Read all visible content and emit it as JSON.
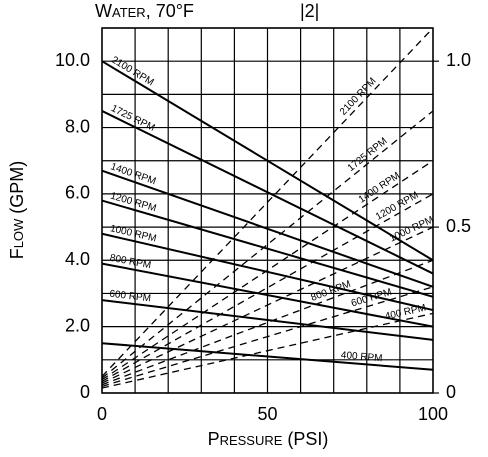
{
  "chart_data": {
    "type": "line",
    "title": "Water, 70°F",
    "annotation": "|2|",
    "xlabel": "Pressure (PSI)",
    "ylabel": "Flow (GPM)",
    "x": [
      0,
      100
    ],
    "xlim": [
      0,
      100
    ],
    "ylim": [
      0,
      11
    ],
    "y2lim": [
      0,
      1.1
    ],
    "grid": true,
    "xticks": [
      0,
      {
        "value": 10,
        "label": null
      },
      {
        "value": 20,
        "label": null
      },
      {
        "value": 30,
        "label": null
      },
      {
        "value": 40,
        "label": null
      },
      50,
      {
        "value": 60,
        "label": null
      },
      {
        "value": 70,
        "label": null
      },
      {
        "value": 80,
        "label": null
      },
      {
        "value": 90,
        "label": null
      },
      100
    ],
    "yticks": [
      0,
      {
        "value": 1,
        "label": null
      },
      {
        "value": 2,
        "label": "2.0"
      },
      {
        "value": 3,
        "label": null
      },
      {
        "value": 4,
        "label": "4.0"
      },
      {
        "value": 5,
        "label": null
      },
      {
        "value": 6,
        "label": "6.0"
      },
      {
        "value": 7,
        "label": null
      },
      {
        "value": 8,
        "label": "8.0"
      },
      {
        "value": 9,
        "label": null
      },
      {
        "value": 10,
        "label": "10.0"
      },
      {
        "value": 11,
        "label": null
      }
    ],
    "y2ticks": [
      0,
      0.5,
      {
        "value": 1,
        "label": "1.0"
      }
    ],
    "series": [
      {
        "name": "2100 RPM",
        "color": "#000000",
        "style": "solid",
        "values": [
          10.0,
          4.0
        ]
      },
      {
        "name": "1725 RPM",
        "color": "#000000",
        "style": "solid",
        "values": [
          8.5,
          3.6
        ]
      },
      {
        "name": "1400 RPM",
        "color": "#000000",
        "style": "solid",
        "values": [
          6.7,
          3.2
        ]
      },
      {
        "name": "1200 RPM",
        "color": "#000000",
        "style": "solid",
        "values": [
          5.8,
          2.9
        ]
      },
      {
        "name": "1000 RPM",
        "color": "#000000",
        "style": "solid",
        "values": [
          4.8,
          2.5
        ]
      },
      {
        "name": "800 RPM",
        "color": "#000000",
        "style": "solid",
        "values": [
          3.9,
          2.0
        ]
      },
      {
        "name": "600 RPM",
        "color": "#000000",
        "style": "solid",
        "values": [
          2.8,
          1.6
        ]
      },
      {
        "name": "400 RPM",
        "color": "#000000",
        "style": "solid",
        "values": [
          1.5,
          0.7
        ]
      },
      {
        "name": "2100 RPM",
        "color": "#000000",
        "style": "dashed",
        "axis": "y2",
        "values": [
          0.05,
          1.1
        ]
      },
      {
        "name": "1725 RPM",
        "color": "#000000",
        "style": "dashed",
        "axis": "y2",
        "values": [
          0.045,
          0.85
        ]
      },
      {
        "name": "1400 RPM",
        "color": "#000000",
        "style": "dashed",
        "axis": "y2",
        "values": [
          0.04,
          0.7
        ]
      },
      {
        "name": "1200 RPM",
        "color": "#000000",
        "style": "dashed",
        "axis": "y2",
        "values": [
          0.035,
          0.6
        ]
      },
      {
        "name": "1000 RPM",
        "color": "#000000",
        "style": "dashed",
        "axis": "y2",
        "values": [
          0.03,
          0.5
        ]
      },
      {
        "name": "800 RPM",
        "color": "#000000",
        "style": "dashed",
        "axis": "y2",
        "values": [
          0.025,
          0.4
        ]
      },
      {
        "name": "600 RPM",
        "color": "#000000",
        "style": "dashed",
        "axis": "y2",
        "values": [
          0.02,
          0.32
        ]
      },
      {
        "name": "400 RPM",
        "color": "#000000",
        "style": "dashed",
        "axis": "y2",
        "values": [
          0.015,
          0.24
        ]
      }
    ]
  }
}
